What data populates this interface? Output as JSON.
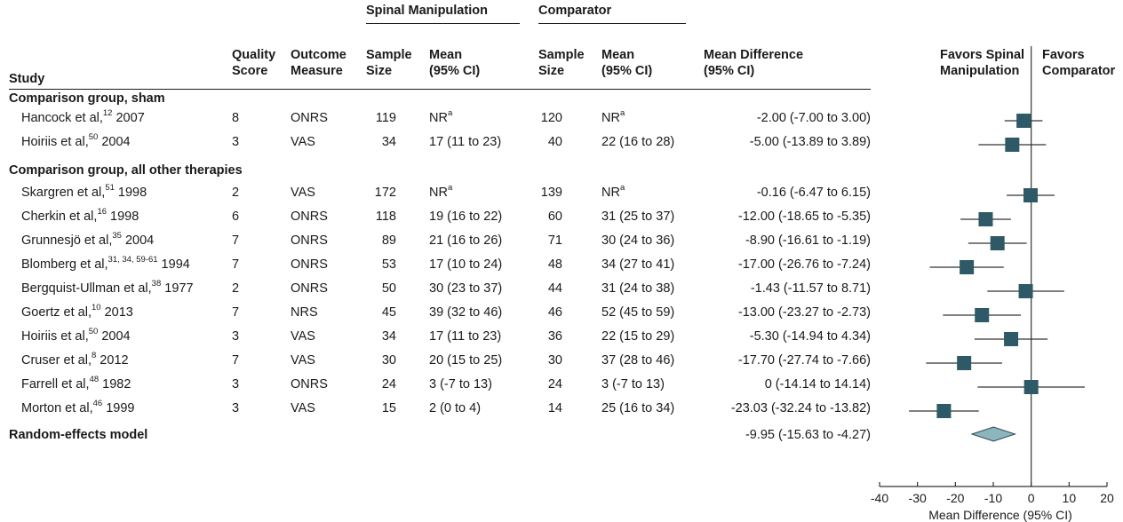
{
  "header": {
    "group_spinal": "Spinal Manipulation",
    "group_comparator": "Comparator",
    "col_study": "Study",
    "col_quality": [
      "Quality",
      "Score"
    ],
    "col_outcome": [
      "Outcome",
      "Measure"
    ],
    "col_sm_size": [
      "Sample",
      "Size"
    ],
    "col_sm_mean": [
      "Mean",
      "(95% CI)"
    ],
    "col_cp_size": [
      "Sample",
      "Size"
    ],
    "col_cp_mean": [
      "Mean",
      "(95% CI)"
    ],
    "col_md": [
      "Mean Difference",
      "(95% CI)"
    ],
    "favors_left": [
      "Favors Spinal",
      "Manipulation"
    ],
    "favors_right": [
      "Favors",
      "Comparator"
    ]
  },
  "sections": [
    {
      "title": "Comparison group, sham"
    },
    {
      "title": "Comparison group, all other therapies"
    }
  ],
  "rows": [
    {
      "name": "Hancock et al,",
      "ref": "12",
      "year": " 2007",
      "quality": "8",
      "outcome": "ONRS",
      "sm_n": "119",
      "sm_mean": "NR",
      "sm_sup": "a",
      "cp_n": "120",
      "cp_mean": "NR",
      "cp_sup": "a",
      "md_text": "-2.00 (-7.00 to 3.00)"
    },
    {
      "name": "Hoiriis et al,",
      "ref": "50",
      "year": " 2004",
      "quality": "3",
      "outcome": "VAS",
      "sm_n": "34",
      "sm_mean": "17 (11 to 23)",
      "sm_sup": "",
      "cp_n": "40",
      "cp_mean": "22 (16 to 28)",
      "cp_sup": "",
      "md_text": "-5.00 (-13.89 to 3.89)"
    },
    {
      "name": "Skargren et al,",
      "ref": "51",
      "year": " 1998",
      "quality": "2",
      "outcome": "VAS",
      "sm_n": "172",
      "sm_mean": "NR",
      "sm_sup": "a",
      "cp_n": "139",
      "cp_mean": "NR",
      "cp_sup": "a",
      "md_text": "-0.16 (-6.47 to 6.15)"
    },
    {
      "name": "Cherkin et al,",
      "ref": "16",
      "year": " 1998",
      "quality": "6",
      "outcome": "ONRS",
      "sm_n": "118",
      "sm_mean": "19 (16 to 22)",
      "sm_sup": "",
      "cp_n": "60",
      "cp_mean": "31 (25 to 37)",
      "cp_sup": "",
      "md_text": "-12.00 (-18.65 to -5.35)"
    },
    {
      "name": "Grunnesjö et al,",
      "ref": "35",
      "year": " 2004",
      "quality": "7",
      "outcome": "ONRS",
      "sm_n": "89",
      "sm_mean": "21 (16 to 26)",
      "sm_sup": "",
      "cp_n": "71",
      "cp_mean": "30 (24 to 36)",
      "cp_sup": "",
      "md_text": "-8.90 (-16.61 to -1.19)"
    },
    {
      "name": "Blomberg et al,",
      "ref": "31, 34, 59-61",
      "year": " 1994",
      "quality": "7",
      "outcome": "ONRS",
      "sm_n": "53",
      "sm_mean": "17 (10 to 24)",
      "sm_sup": "",
      "cp_n": "48",
      "cp_mean": "34 (27 to 41)",
      "cp_sup": "",
      "md_text": "-17.00 (-26.76 to -7.24)"
    },
    {
      "name": "Bergquist-Ullman et al,",
      "ref": "38",
      "year": " 1977",
      "quality": "2",
      "outcome": "ONRS",
      "sm_n": "50",
      "sm_mean": "30 (23 to 37)",
      "sm_sup": "",
      "cp_n": "44",
      "cp_mean": "31 (24 to 38)",
      "cp_sup": "",
      "md_text": "-1.43 (-11.57 to 8.71)"
    },
    {
      "name": "Goertz et al,",
      "ref": "10",
      "year": " 2013",
      "quality": "7",
      "outcome": "NRS",
      "sm_n": "45",
      "sm_mean": "39 (32 to 46)",
      "sm_sup": "",
      "cp_n": "46",
      "cp_mean": "52 (45 to 59)",
      "cp_sup": "",
      "md_text": "-13.00 (-23.27 to -2.73)"
    },
    {
      "name": "Hoiriis et al,",
      "ref": "50",
      "year": " 2004",
      "quality": "3",
      "outcome": "VAS",
      "sm_n": "34",
      "sm_mean": "17 (11 to 23)",
      "sm_sup": "",
      "cp_n": "36",
      "cp_mean": "22 (15 to 29)",
      "cp_sup": "",
      "md_text": "-5.30 (-14.94 to 4.34)"
    },
    {
      "name": "Cruser et al,",
      "ref": "8",
      "year": " 2012",
      "quality": "7",
      "outcome": "VAS",
      "sm_n": "30",
      "sm_mean": "20 (15 to 25)",
      "sm_sup": "",
      "cp_n": "30",
      "cp_mean": "37 (28 to 46)",
      "cp_sup": "",
      "md_text": "-17.70 (-27.74 to -7.66)"
    },
    {
      "name": "Farrell et al,",
      "ref": "48",
      "year": " 1982",
      "quality": "3",
      "outcome": "ONRS",
      "sm_n": "24",
      "sm_mean": "3 (-7 to 13)",
      "sm_sup": "",
      "cp_n": "24",
      "cp_mean": "3 (-7 to 13)",
      "cp_sup": "",
      "md_text": "0 (-14.14 to 14.14)"
    },
    {
      "name": "Morton et al,",
      "ref": "46",
      "year": " 1999",
      "quality": "3",
      "outcome": "VAS",
      "sm_n": "15",
      "sm_mean": "2 (0 to 4)",
      "sm_sup": "",
      "cp_n": "14",
      "cp_mean": "25 (16 to 34)",
      "cp_sup": "",
      "md_text": "-23.03 (-32.24 to -13.82)"
    }
  ],
  "pooled": {
    "label": "Random-effects model",
    "md_text": "-9.95 (-15.63 to -4.27)"
  },
  "chart_data": {
    "type": "forest",
    "xlabel": "Mean Difference (95% CI)",
    "xlim": [
      -40,
      20
    ],
    "xticks": [
      -40,
      -30,
      -20,
      -10,
      0,
      10,
      20
    ],
    "reference_line": 0,
    "marker_color": "#2d5a66",
    "diamond_color": "#8db5bd",
    "studies": [
      {
        "md": -2.0,
        "lo": -7.0,
        "hi": 3.0
      },
      {
        "md": -5.0,
        "lo": -13.89,
        "hi": 3.89
      },
      {
        "md": -0.16,
        "lo": -6.47,
        "hi": 6.15
      },
      {
        "md": -12.0,
        "lo": -18.65,
        "hi": -5.35
      },
      {
        "md": -8.9,
        "lo": -16.61,
        "hi": -1.19
      },
      {
        "md": -17.0,
        "lo": -26.76,
        "hi": -7.24
      },
      {
        "md": -1.43,
        "lo": -11.57,
        "hi": 8.71
      },
      {
        "md": -13.0,
        "lo": -23.27,
        "hi": -2.73
      },
      {
        "md": -5.3,
        "lo": -14.94,
        "hi": 4.34
      },
      {
        "md": -17.7,
        "lo": -27.74,
        "hi": -7.66
      },
      {
        "md": 0.0,
        "lo": -14.14,
        "hi": 14.14
      },
      {
        "md": -23.03,
        "lo": -32.24,
        "hi": -13.82
      }
    ],
    "pooled": {
      "md": -9.95,
      "lo": -15.63,
      "hi": -4.27
    }
  }
}
